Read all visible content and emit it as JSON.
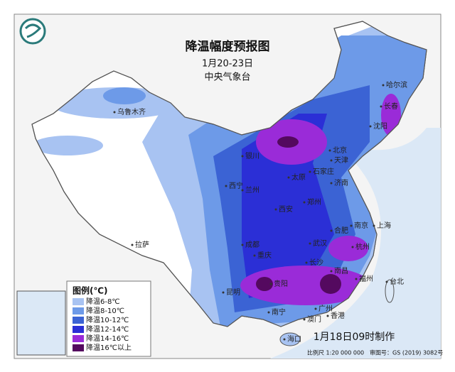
{
  "header": {
    "title": "降温幅度预报图",
    "date": "1月20-23日",
    "issuer": "中央气象台"
  },
  "legend": {
    "title": "图例(℃)",
    "items": [
      {
        "label": "降温6-8℃",
        "color": "#a8c3f2"
      },
      {
        "label": "降温8-10℃",
        "color": "#6d9ae8"
      },
      {
        "label": "降温10-12℃",
        "color": "#3b63d4"
      },
      {
        "label": "降温12-14℃",
        "color": "#2b2fd6"
      },
      {
        "label": "降温14-16℃",
        "color": "#9a2bd8"
      },
      {
        "label": "降温16℃以上",
        "color": "#54095f"
      }
    ]
  },
  "cities": [
    "乌鲁木齐",
    "哈尔滨",
    "长春",
    "沈阳",
    "北京",
    "天津",
    "石家庄",
    "太原",
    "银川",
    "兰州",
    "西宁",
    "西安",
    "郑州",
    "济南",
    "南京",
    "上海",
    "合肥",
    "武汉",
    "杭州",
    "长沙",
    "南昌",
    "福州",
    "台北",
    "成都",
    "重庆",
    "贵阳",
    "昆明",
    "南宁",
    "广州",
    "香港",
    "澳门",
    "海口",
    "拉萨"
  ],
  "footer": {
    "made": "1月18日09时制作",
    "scale": "比例尺 1:20 000 000",
    "approval": "审图号：GS (2019) 3082号"
  }
}
